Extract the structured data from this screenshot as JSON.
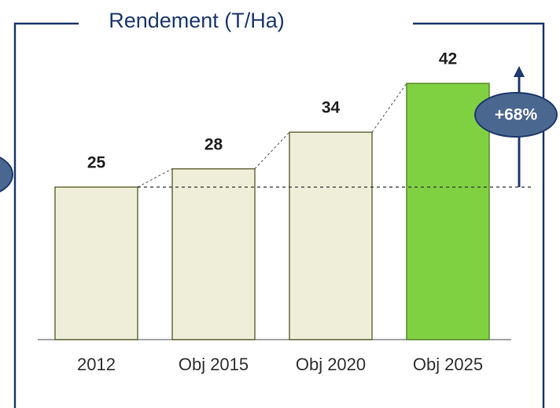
{
  "chart_data": {
    "type": "bar",
    "title": "Rendement (T/Ha)",
    "categories": [
      "2012",
      "Obj 2015",
      "Obj 2020",
      "Obj 2025"
    ],
    "values": [
      25,
      28,
      34,
      42
    ],
    "colors": [
      "#eeeed9",
      "#eeeed9",
      "#eeeed9",
      "#7fd142"
    ],
    "ylim": [
      0,
      56
    ],
    "annotation": "+68%"
  }
}
